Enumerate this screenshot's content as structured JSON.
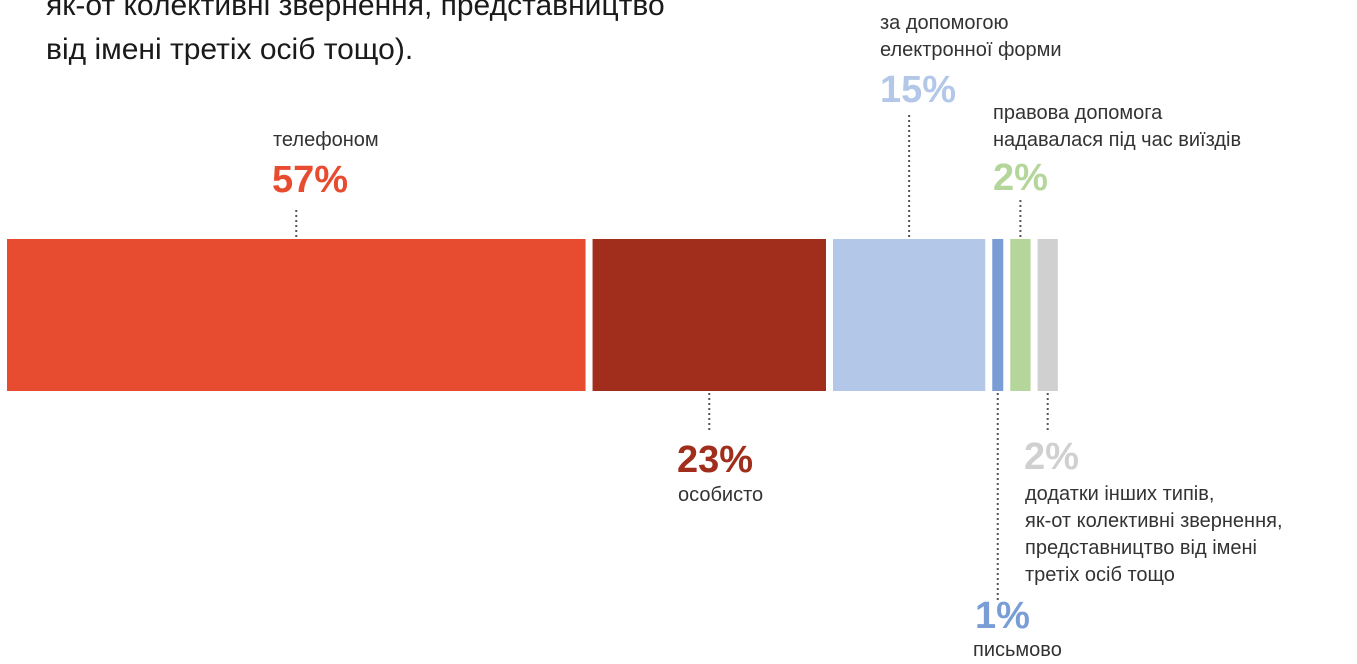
{
  "intro_text": {
    "lines": [
      "як-от колективні звернення, представництво",
      "від імені третіх осіб тощо)."
    ]
  },
  "colors": {
    "phone": "#e84c30",
    "in_person": "#a12e1c",
    "electronic": "#b3c8e8",
    "written": "#7a9dd6",
    "field_trips": "#b5d69b",
    "other": "#d0d0d0",
    "leader": "#555555"
  },
  "chart_data": {
    "type": "bar",
    "orientation": "horizontal-stacked",
    "series": [
      {
        "key": "phone",
        "value": 57,
        "pct_label": "57%",
        "label_lines": [
          "телефоном"
        ],
        "color": "#e84c30"
      },
      {
        "key": "in_person",
        "value": 23,
        "pct_label": "23%",
        "label_lines": [
          "особисто"
        ],
        "color": "#a12e1c"
      },
      {
        "key": "electronic",
        "value": 15,
        "pct_label": "15%",
        "label_lines": [
          "за допомогою",
          "електронної форми"
        ],
        "color": "#b3c8e8"
      },
      {
        "key": "written",
        "value": 1,
        "pct_label": "1%",
        "label_lines": [
          "письмово"
        ],
        "color": "#7a9dd6"
      },
      {
        "key": "field_trips",
        "value": 2,
        "pct_label": "2%",
        "label_lines": [
          "правова допомога",
          "надавалася під час виїздів"
        ],
        "color": "#b5d69b"
      },
      {
        "key": "other",
        "value": 2,
        "pct_label": "2%",
        "label_lines": [
          "додатки інших типів,",
          "як-от колективні звернення,",
          "представництво від імені",
          "третіх осіб тощо"
        ],
        "color": "#d0d0d0"
      }
    ],
    "unit": "%",
    "total": 100,
    "legend": "none",
    "grid": false
  }
}
